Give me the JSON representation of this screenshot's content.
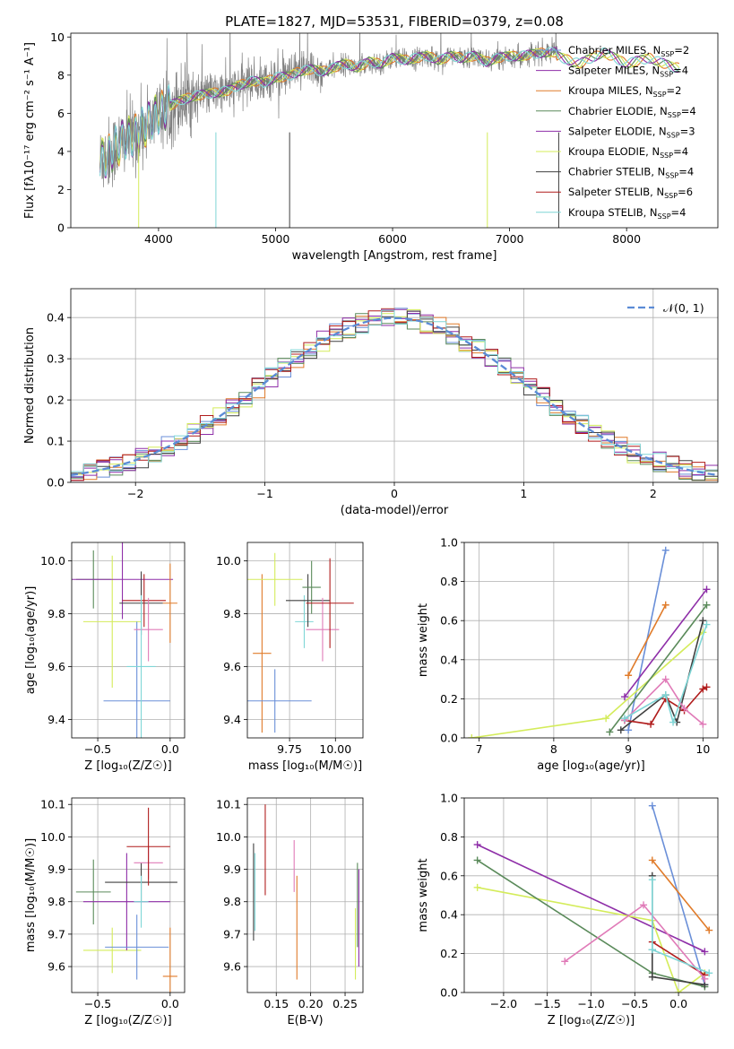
{
  "figure_title": "PLATE=1827, MJD=53531, FIBERID=0379, z=0.08",
  "colors": {
    "chabrier_miles": "#6a8fd8",
    "salpeter_miles": "#8e2ea8",
    "kroupa_miles": "#e07b2a",
    "chabrier_elodie": "#5a8a5a",
    "salpeter_elodie": "#8e2ea8",
    "kroupa_elodie": "#d4ec5a",
    "chabrier_stelib": "#404040",
    "salpeter_stelib": "#b01c1c",
    "kroupa_stelib": "#7fd6d6",
    "pink": "#e07bb8",
    "data_gray": "#808080",
    "normal_curve": "#5b8bd6"
  },
  "chart_data": [
    {
      "id": "spectrum",
      "type": "line",
      "title": "PLATE=1827, MJD=53531, FIBERID=0379, z=0.08",
      "xlabel": "wavelength [Angstrom, rest frame]",
      "ylabel": "Flux [fλ10⁻¹⁷ erg cm⁻² s⁻¹ A⁻¹]",
      "xlim": [
        3250,
        8780
      ],
      "ylim": [
        0,
        10.2
      ],
      "xticks": [
        4000,
        5000,
        6000,
        7000,
        8000
      ],
      "yticks": [
        0,
        2,
        4,
        6,
        8,
        10
      ],
      "grid": false,
      "legend_position": "right",
      "legend": [
        {
          "name": "Chabrier MILES, N_SSP=2",
          "color_key": "chabrier_miles"
        },
        {
          "name": "Salpeter MILES, N_SSP=4",
          "color_key": "salpeter_miles"
        },
        {
          "name": "Kroupa MILES, N_SSP=2",
          "color_key": "kroupa_miles"
        },
        {
          "name": "Chabrier ELODIE, N_SSP=4",
          "color_key": "chabrier_elodie"
        },
        {
          "name": "Salpeter ELODIE, N_SSP=3",
          "color_key": "salpeter_elodie"
        },
        {
          "name": "Kroupa ELODIE, N_SSP=4",
          "color_key": "kroupa_elodie"
        },
        {
          "name": "Chabrier STELIB, N_SSP=4",
          "color_key": "chabrier_stelib"
        },
        {
          "name": "Salpeter STELIB, N_SSP=6",
          "color_key": "salpeter_stelib"
        },
        {
          "name": "Kroupa STELIB, N_SSP=4",
          "color_key": "kroupa_stelib"
        }
      ],
      "continuum": {
        "x": [
          3500,
          3600,
          3700,
          3800,
          3900,
          4000,
          4100,
          4200,
          4300,
          4400,
          4500,
          4600,
          4700,
          4800,
          4900,
          5000,
          5100,
          5200,
          5300,
          5400,
          5500,
          5600,
          5700,
          5800,
          5900,
          6000,
          6100,
          6200,
          6300,
          6400,
          6500,
          6600,
          6700,
          6800,
          6900,
          7000,
          7100,
          7200,
          7300,
          7400
        ],
        "y": [
          3.5,
          4.0,
          4.6,
          4.9,
          5.4,
          6.0,
          6.4,
          6.7,
          6.9,
          7.0,
          7.1,
          7.2,
          7.5,
          7.7,
          7.6,
          7.9,
          7.9,
          8.2,
          8.3,
          8.2,
          8.4,
          8.6,
          8.4,
          8.7,
          8.6,
          8.9,
          8.8,
          8.9,
          9.0,
          8.8,
          9.0,
          8.9,
          9.0,
          8.7,
          8.9,
          9.0,
          9.0,
          9.1,
          9.2,
          9.2
        ]
      },
      "model_tail": {
        "x": [
          7400,
          7600,
          7800,
          8000,
          8200,
          8400
        ],
        "y": [
          9.0,
          8.6,
          9.2,
          8.6,
          8.9,
          8.4
        ]
      }
    },
    {
      "id": "residuals",
      "type": "line",
      "xlabel": "(data-model)/error",
      "ylabel": "Normed distribution",
      "xlim": [
        -2.5,
        2.5
      ],
      "ylim": [
        0,
        0.47
      ],
      "xticks": [
        -2,
        -1,
        0,
        1,
        2
      ],
      "yticks": [
        0.0,
        0.1,
        0.2,
        0.3,
        0.4
      ],
      "grid": true,
      "legend_position": "top-right",
      "legend": [
        {
          "name": "𝒩(0, 1)",
          "color_key": "normal_curve"
        }
      ],
      "normal": {
        "mean": 0,
        "sigma": 1
      }
    },
    {
      "id": "age_vs_z",
      "type": "scatter",
      "xlabel": "Z [log₁₀(Z/Z☉)]",
      "ylabel": "age  [log₁₀(age/yr)]",
      "xlim": [
        -0.68,
        0.1
      ],
      "ylim": [
        9.33,
        10.07
      ],
      "xticks": [
        -0.5,
        0.0
      ],
      "xtick_labels": [
        "−0.5",
        "0.0"
      ],
      "yticks": [
        9.4,
        9.6,
        9.8,
        10.0
      ],
      "grid": true,
      "points": [
        {
          "x": -0.53,
          "y": 9.93,
          "xerr": 0.12,
          "yerr": 0.11,
          "color_key": "chabrier_elodie"
        },
        {
          "x": -0.4,
          "y": 9.77,
          "xerr": 0.2,
          "yerr": 0.25,
          "color_key": "kroupa_elodie"
        },
        {
          "x": -0.33,
          "y": 9.93,
          "xerr": 0.35,
          "yerr": 0.15,
          "color_key": "salpeter_miles"
        },
        {
          "x": -0.23,
          "y": 9.47,
          "xerr": 0.23,
          "yerr": 0.3,
          "color_key": "chabrier_miles"
        },
        {
          "x": -0.2,
          "y": 9.84,
          "xerr": 0.15,
          "yerr": 0.12,
          "color_key": "chabrier_stelib"
        },
        {
          "x": -0.18,
          "y": 9.85,
          "xerr": 0.15,
          "yerr": 0.1,
          "color_key": "salpeter_stelib"
        },
        {
          "x": -0.15,
          "y": 9.74,
          "xerr": 0.1,
          "yerr": 0.12,
          "color_key": "pink"
        },
        {
          "x": -0.2,
          "y": 9.6,
          "xerr": 0.1,
          "yerr": 0.27,
          "color_key": "kroupa_stelib"
        },
        {
          "x": 0.0,
          "y": 9.84,
          "xerr": 0.05,
          "yerr": 0.15,
          "color_key": "kroupa_miles"
        }
      ]
    },
    {
      "id": "age_vs_mass",
      "type": "scatter",
      "xlabel": "mass [log₁₀(M/M☉)]",
      "ylabel": "",
      "xlim": [
        9.52,
        10.15
      ],
      "ylim": [
        9.33,
        10.07
      ],
      "xticks": [
        9.75,
        10.0
      ],
      "xtick_labels": [
        "9.75",
        "10.00"
      ],
      "yticks": [
        9.4,
        9.6,
        9.8,
        10.0
      ],
      "grid": true,
      "points": [
        {
          "x": 9.6,
          "y": 9.65,
          "xerr": 0.05,
          "yerr": 0.3,
          "color_key": "kroupa_miles"
        },
        {
          "x": 9.67,
          "y": 9.47,
          "xerr": 0.2,
          "yerr": 0.12,
          "color_key": "chabrier_miles"
        },
        {
          "x": 9.67,
          "y": 9.93,
          "xerr": 0.15,
          "yerr": 0.1,
          "color_key": "kroupa_elodie"
        },
        {
          "x": 9.83,
          "y": 9.77,
          "xerr": 0.05,
          "yerr": 0.1,
          "color_key": "kroupa_stelib"
        },
        {
          "x": 9.85,
          "y": 9.85,
          "xerr": 0.12,
          "yerr": 0.1,
          "color_key": "chabrier_stelib"
        },
        {
          "x": 9.87,
          "y": 9.9,
          "xerr": 0.05,
          "yerr": 0.1,
          "color_key": "chabrier_elodie"
        },
        {
          "x": 9.93,
          "y": 9.74,
          "xerr": 0.09,
          "yerr": 0.12,
          "color_key": "pink"
        },
        {
          "x": 9.97,
          "y": 9.84,
          "xerr": 0.13,
          "yerr": 0.17,
          "color_key": "salpeter_stelib"
        }
      ]
    },
    {
      "id": "weight_vs_age",
      "type": "line",
      "xlabel": "age  [log₁₀(age/yr)]",
      "ylabel": "mass weight",
      "xlim": [
        6.8,
        10.2
      ],
      "ylim": [
        0.0,
        1.0
      ],
      "xticks": [
        7,
        8,
        9,
        10
      ],
      "yticks": [
        0.0,
        0.2,
        0.4,
        0.6,
        0.8,
        1.0
      ],
      "grid": true,
      "series": [
        {
          "color_key": "chabrier_miles",
          "x": [
            9.0,
            9.5
          ],
          "y": [
            0.04,
            0.96
          ]
        },
        {
          "color_key": "kroupa_miles",
          "x": [
            9.0,
            9.5
          ],
          "y": [
            0.32,
            0.68
          ]
        },
        {
          "color_key": "salpeter_miles",
          "x": [
            8.95,
            10.05
          ],
          "y": [
            0.21,
            0.76
          ]
        },
        {
          "color_key": "kroupa_elodie",
          "x": [
            6.9,
            8.7,
            10.0
          ],
          "y": [
            0.0,
            0.1,
            0.54
          ]
        },
        {
          "color_key": "chabrier_elodie",
          "x": [
            8.75,
            10.05
          ],
          "y": [
            0.03,
            0.68
          ]
        },
        {
          "color_key": "chabrier_stelib",
          "x": [
            8.9,
            9.5,
            9.65,
            10.0
          ],
          "y": [
            0.04,
            0.22,
            0.08,
            0.6
          ]
        },
        {
          "color_key": "salpeter_stelib",
          "x": [
            8.95,
            9.3,
            9.5,
            9.75,
            10.0,
            10.05
          ],
          "y": [
            0.09,
            0.07,
            0.2,
            0.14,
            0.25,
            0.26
          ]
        },
        {
          "color_key": "pink",
          "x": [
            8.95,
            9.5,
            9.75,
            10.0
          ],
          "y": [
            0.09,
            0.3,
            0.15,
            0.07
          ]
        },
        {
          "color_key": "kroupa_stelib",
          "x": [
            8.95,
            9.5,
            9.6,
            10.05
          ],
          "y": [
            0.1,
            0.22,
            0.08,
            0.58
          ]
        }
      ]
    },
    {
      "id": "mass_vs_z",
      "type": "scatter",
      "xlabel": "Z [log₁₀(Z/Z☉)]",
      "ylabel": "mass [log₁₀(M/M☉)]",
      "xlim": [
        -0.68,
        0.1
      ],
      "ylim": [
        9.52,
        10.12
      ],
      "xticks": [
        -0.5,
        0.0
      ],
      "xtick_labels": [
        "−0.5",
        "0.0"
      ],
      "yticks": [
        9.6,
        9.7,
        9.8,
        9.9,
        10.0,
        10.1
      ],
      "grid": true,
      "points": [
        {
          "x": -0.53,
          "y": 9.83,
          "xerr": 0.12,
          "yerr": 0.1,
          "color_key": "chabrier_elodie"
        },
        {
          "x": -0.4,
          "y": 9.65,
          "xerr": 0.2,
          "yerr": 0.07,
          "color_key": "kroupa_elodie"
        },
        {
          "x": -0.3,
          "y": 9.8,
          "xerr": 0.3,
          "yerr": 0.15,
          "color_key": "salpeter_miles"
        },
        {
          "x": -0.23,
          "y": 9.66,
          "xerr": 0.22,
          "yerr": 0.1,
          "color_key": "chabrier_miles"
        },
        {
          "x": -0.2,
          "y": 9.86,
          "xerr": 0.25,
          "yerr": 0.06,
          "color_key": "chabrier_stelib"
        },
        {
          "x": -0.2,
          "y": 9.8,
          "xerr": 0.05,
          "yerr": 0.08,
          "color_key": "kroupa_stelib"
        },
        {
          "x": -0.15,
          "y": 9.92,
          "xerr": 0.1,
          "yerr": 0.05,
          "color_key": "pink"
        },
        {
          "x": -0.15,
          "y": 9.97,
          "xerr": 0.15,
          "yerr": 0.12,
          "color_key": "salpeter_stelib"
        },
        {
          "x": 0.0,
          "y": 9.57,
          "xerr": 0.05,
          "yerr": 0.15,
          "color_key": "kroupa_miles"
        }
      ]
    },
    {
      "id": "mass_vs_ebv",
      "type": "scatter",
      "xlabel": "E(B-V)",
      "ylabel": "",
      "xlim": [
        0.108,
        0.276
      ],
      "ylim": [
        9.52,
        10.12
      ],
      "xticks": [
        0.15,
        0.2,
        0.25
      ],
      "xtick_labels": [
        "0.15",
        "0.20",
        "0.25"
      ],
      "yticks": [
        9.6,
        9.7,
        9.8,
        9.9,
        10.0,
        10.1
      ],
      "grid": true,
      "points": [
        {
          "x": 0.117,
          "y": 9.83,
          "yerr": 0.15,
          "color_key": "chabrier_stelib"
        },
        {
          "x": 0.119,
          "y": 9.83,
          "yerr": 0.12,
          "color_key": "kroupa_stelib"
        },
        {
          "x": 0.134,
          "y": 9.96,
          "yerr": 0.14,
          "color_key": "salpeter_stelib"
        },
        {
          "x": 0.176,
          "y": 9.91,
          "yerr": 0.08,
          "color_key": "pink"
        },
        {
          "x": 0.18,
          "y": 9.72,
          "yerr": 0.16,
          "color_key": "kroupa_miles"
        },
        {
          "x": 0.265,
          "y": 9.67,
          "yerr": 0.11,
          "color_key": "kroupa_elodie"
        },
        {
          "x": 0.268,
          "y": 9.79,
          "yerr": 0.13,
          "color_key": "chabrier_elodie"
        },
        {
          "x": 0.27,
          "y": 9.75,
          "yerr": 0.15,
          "color_key": "salpeter_miles"
        }
      ]
    },
    {
      "id": "weight_vs_z",
      "type": "line",
      "xlabel": "Z [log₁₀(Z/Z☉)]",
      "ylabel": "mass weight",
      "xlim": [
        -2.45,
        0.45
      ],
      "ylim": [
        0.0,
        1.0
      ],
      "xticks": [
        -2.0,
        -1.5,
        -1.0,
        -0.5,
        0.0
      ],
      "xtick_labels": [
        "−2.0",
        "−1.5",
        "−1.0",
        "−0.5",
        "0.0"
      ],
      "yticks": [
        0.0,
        0.2,
        0.4,
        0.6,
        0.8,
        1.0
      ],
      "grid": true,
      "series": [
        {
          "color_key": "chabrier_miles",
          "x": [
            -0.3,
            0.3
          ],
          "y": [
            0.96,
            0.04
          ]
        },
        {
          "color_key": "kroupa_miles",
          "x": [
            -0.3,
            0.35
          ],
          "y": [
            0.68,
            0.32
          ]
        },
        {
          "color_key": "salpeter_miles",
          "x": [
            -2.3,
            0.3
          ],
          "y": [
            0.76,
            0.21
          ]
        },
        {
          "color_key": "kroupa_elodie",
          "x": [
            -2.3,
            -0.3,
            0.0,
            0.3
          ],
          "y": [
            0.54,
            0.37,
            0.0,
            0.1
          ]
        },
        {
          "color_key": "chabrier_elodie",
          "x": [
            -2.3,
            -0.3,
            0.3
          ],
          "y": [
            0.68,
            0.1,
            0.03
          ]
        },
        {
          "color_key": "chabrier_stelib",
          "x": [
            -0.3,
            -0.3,
            -0.3,
            0.3
          ],
          "y": [
            0.6,
            0.22,
            0.08,
            0.04
          ]
        },
        {
          "color_key": "salpeter_stelib",
          "x": [
            -0.3,
            0.3
          ],
          "y": [
            0.26,
            0.09
          ]
        },
        {
          "color_key": "pink",
          "x": [
            -1.3,
            -0.4,
            0.3
          ],
          "y": [
            0.16,
            0.45,
            0.07
          ]
        },
        {
          "color_key": "kroupa_stelib",
          "x": [
            -0.3,
            -0.3,
            0.35
          ],
          "y": [
            0.58,
            0.22,
            0.1
          ]
        }
      ]
    }
  ]
}
